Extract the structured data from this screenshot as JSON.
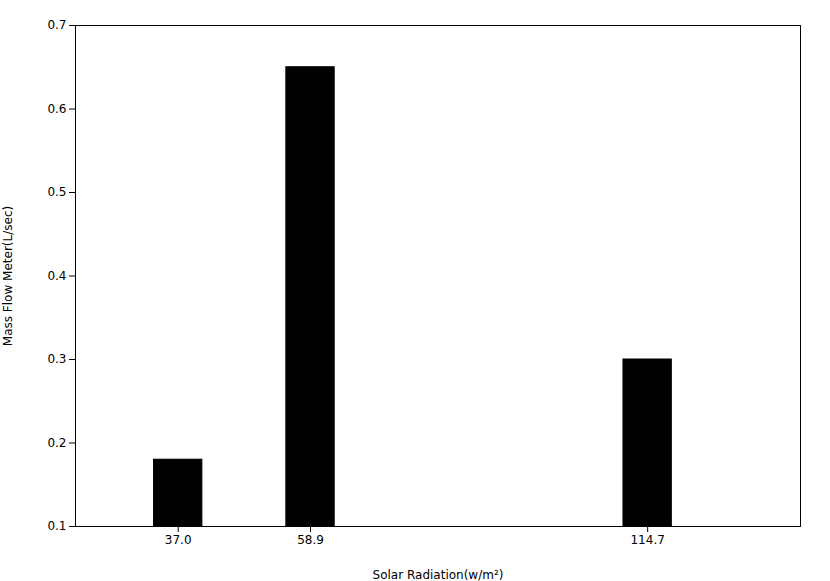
{
  "chart_data": {
    "type": "bar",
    "categories": [
      37.0,
      58.9,
      114.7
    ],
    "values": [
      0.18,
      0.65,
      0.3
    ],
    "color": "#000000",
    "xlabel": "Solar Radiation(w/m²)",
    "ylabel": "Mass Flow Meter(L/sec)",
    "xlim": [
      20,
      140
    ],
    "xticks": [
      {
        "value": 37.0,
        "label": "37.0"
      },
      58.9,
      114.7
    ],
    "ylim": [
      0.1,
      0.7
    ],
    "yticks": [
      0.1,
      0.2,
      0.3,
      0.4,
      0.5,
      0.6,
      0.7
    ],
    "grid": false
  }
}
